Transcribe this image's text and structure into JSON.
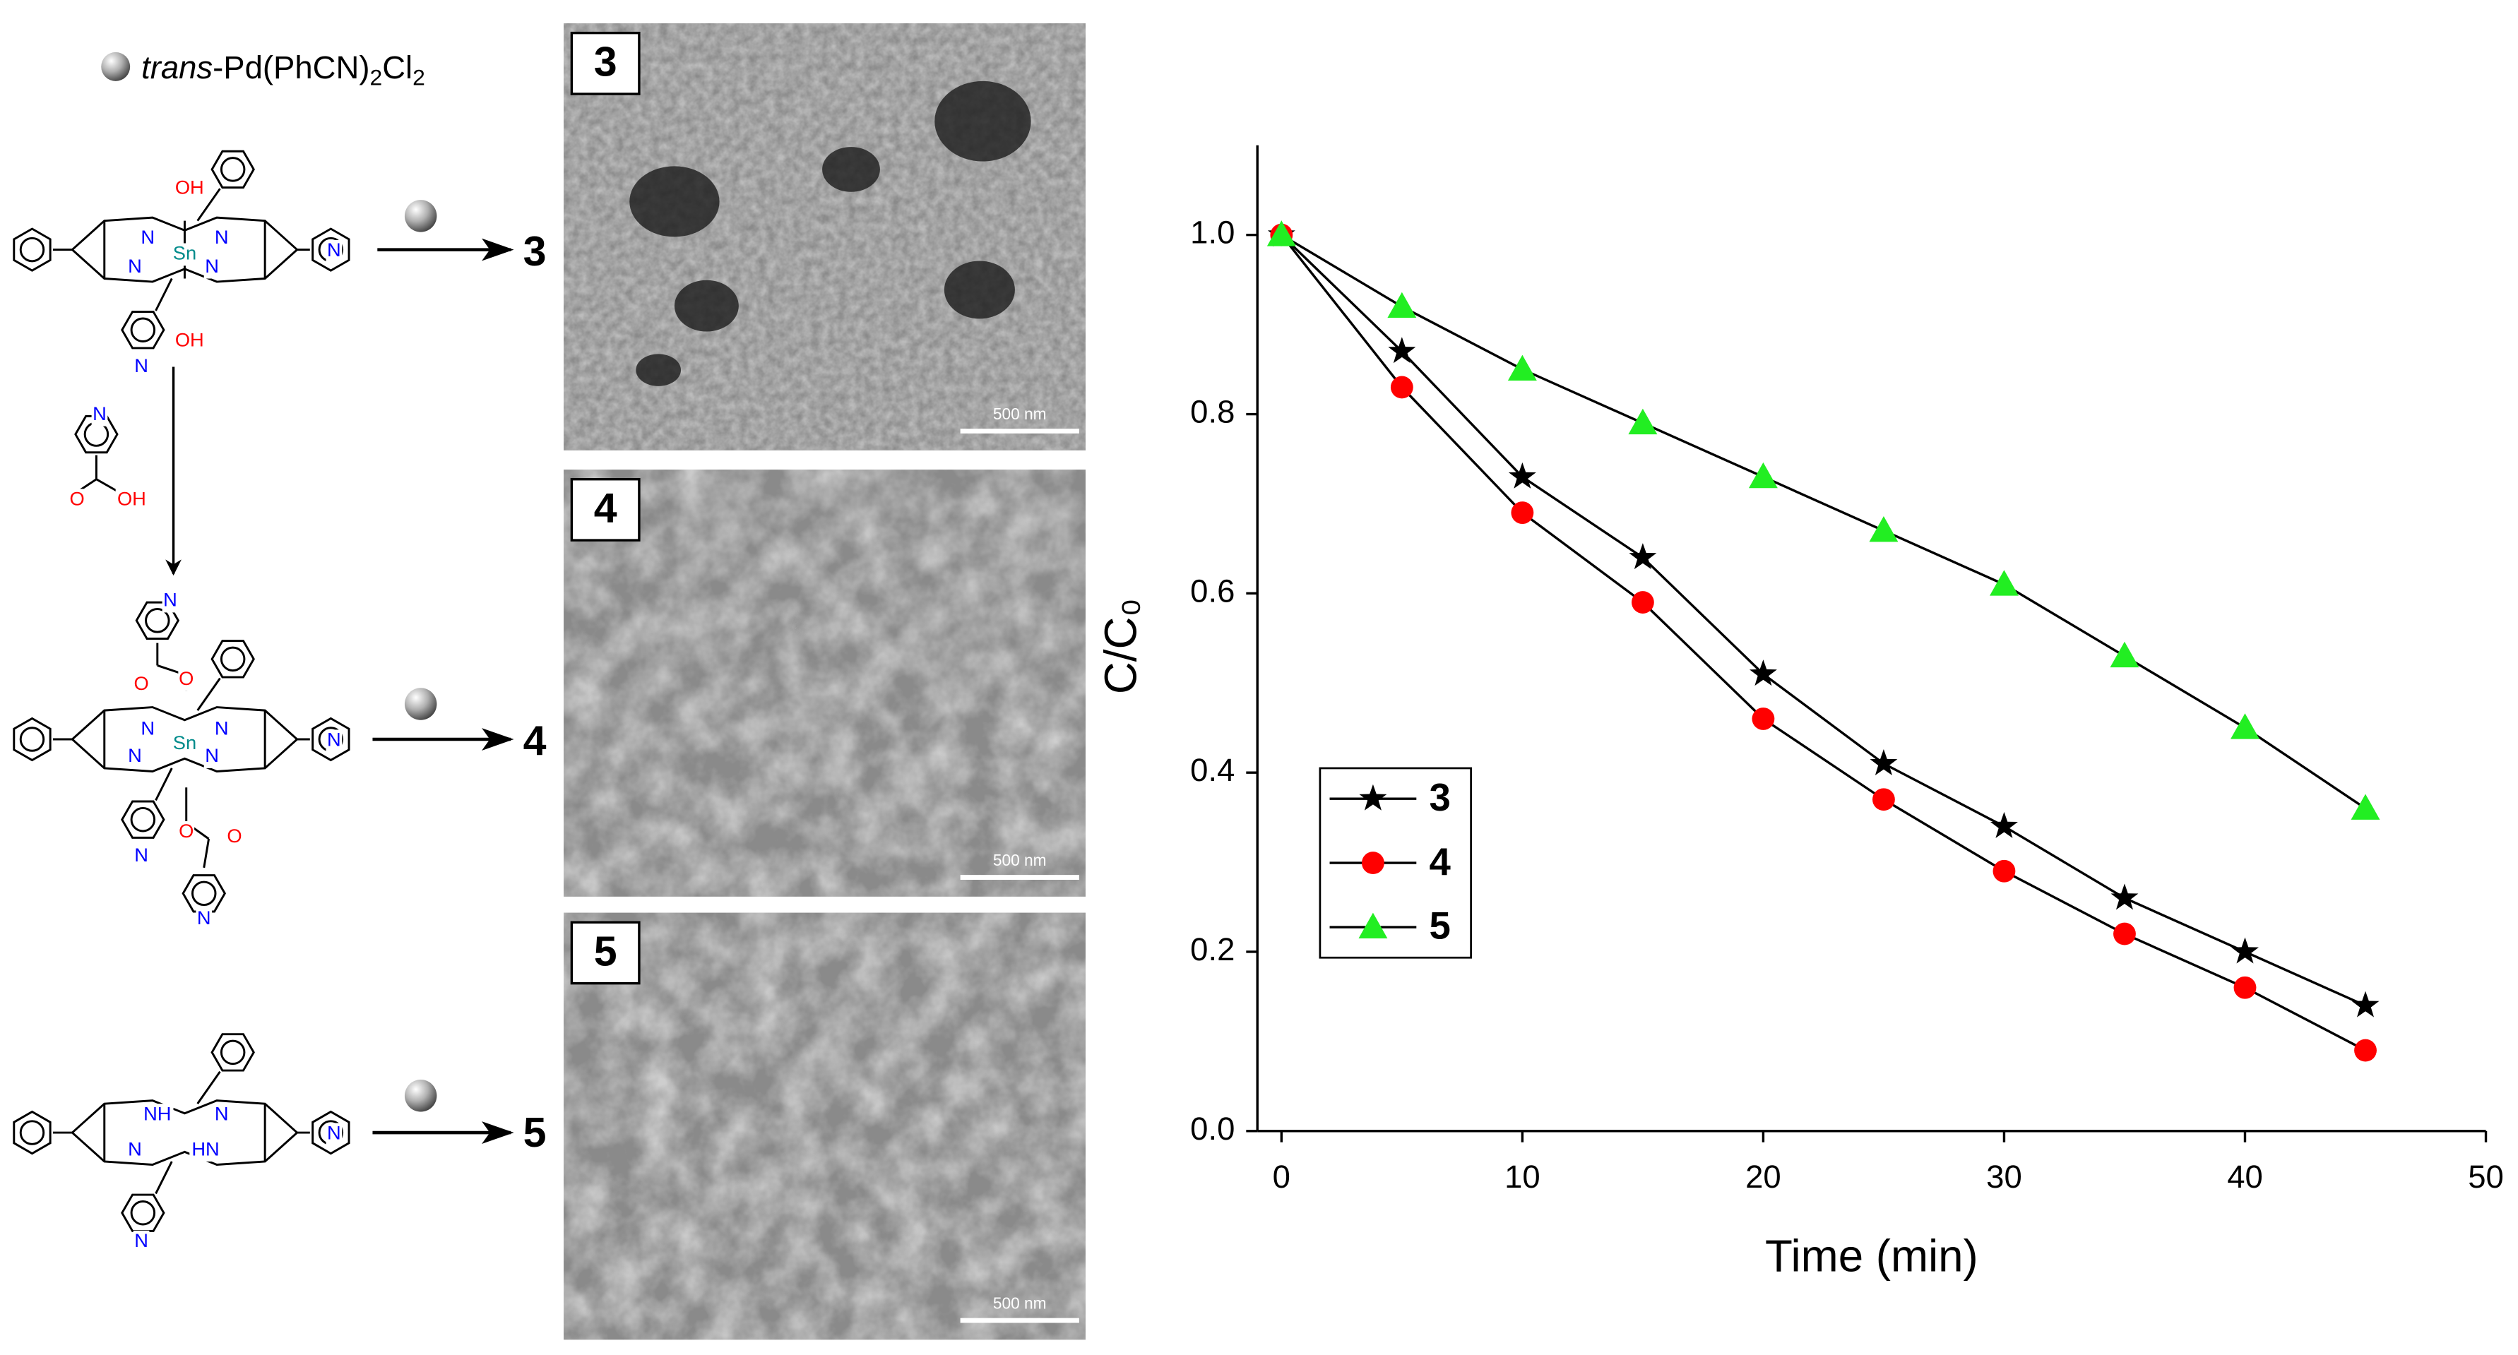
{
  "reagent": {
    "italic": "trans",
    "text": "-Pd(PhCN)",
    "sub1": "2",
    "text2": "Cl",
    "sub2": "2"
  },
  "scheme": {
    "products": [
      "3",
      "4",
      "5"
    ],
    "molecules": [
      {
        "atoms": [
          "OH",
          "N",
          "N",
          "Sn",
          "N",
          "N",
          "N",
          "OH",
          "N"
        ]
      },
      {
        "atoms": [
          "N",
          "O",
          "O",
          "N",
          "N",
          "Sn",
          "N",
          "N",
          "N",
          "O",
          "O",
          "N",
          "N"
        ]
      },
      {
        "atoms": [
          "NH",
          "N",
          "N",
          "HN",
          "N",
          "N"
        ]
      }
    ],
    "additive": {
      "atoms": [
        "N",
        "O",
        "OH"
      ]
    }
  },
  "sem": [
    {
      "label": "3",
      "scale_bar": "500 nm"
    },
    {
      "label": "4",
      "scale_bar": "500 nm"
    },
    {
      "label": "5",
      "scale_bar": "500 nm"
    }
  ],
  "chart_data": {
    "type": "line",
    "x_label": "Time (min)",
    "y_label": "C/C₀",
    "x": [
      0,
      5,
      10,
      15,
      20,
      25,
      30,
      35,
      40,
      45
    ],
    "series": [
      {
        "name": "3",
        "color": "#000000",
        "marker": "star",
        "values": [
          1.0,
          0.87,
          0.73,
          0.64,
          0.51,
          0.41,
          0.34,
          0.26,
          0.2,
          0.14
        ]
      },
      {
        "name": "4",
        "color": "#ff0000",
        "marker": "circle",
        "values": [
          1.0,
          0.83,
          0.69,
          0.59,
          0.46,
          0.37,
          0.29,
          0.22,
          0.16,
          0.09
        ]
      },
      {
        "name": "5",
        "color": "#22ee22",
        "marker": "triangle",
        "values": [
          1.0,
          0.92,
          0.85,
          0.79,
          0.73,
          0.67,
          0.61,
          0.53,
          0.45,
          0.36
        ]
      }
    ],
    "line_color": "#000000",
    "xlim": [
      -1,
      50
    ],
    "xticks": [
      0,
      10,
      20,
      30,
      40,
      50
    ],
    "ylim": [
      0,
      1.1
    ],
    "yticks": [
      {
        "value": 0,
        "label": "0.0"
      },
      0.2,
      0.4,
      0.6,
      0.8,
      {
        "value": 1,
        "label": "1.0"
      }
    ],
    "legend": "lower left"
  }
}
